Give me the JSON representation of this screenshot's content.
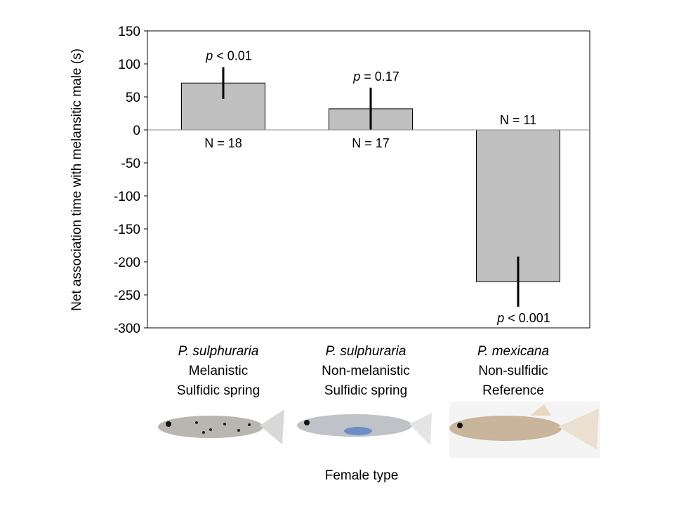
{
  "chart_data": {
    "type": "bar",
    "title": "",
    "xlabel": "Female type",
    "ylabel": "Net association time with melansitic male (s)",
    "ylim": [
      -300,
      150
    ],
    "yticks": [
      150,
      100,
      50,
      0,
      -50,
      -100,
      -150,
      -200,
      -250,
      -300
    ],
    "grid": false,
    "categories": [
      {
        "species": "P. sulphuraria",
        "line2": "Melanistic",
        "line3": "Sulfidic spring"
      },
      {
        "species": "P. sulphuraria",
        "line2": "Non-melanistic",
        "line3": "Sulfidic spring"
      },
      {
        "species": "P. mexicana",
        "line2": "Non-sulfidic",
        "line3": "Reference"
      }
    ],
    "values": [
      71,
      32,
      -230
    ],
    "error": [
      24,
      32,
      38
    ],
    "n_labels": [
      "N = 18",
      "N = 17",
      "N = 11"
    ],
    "p_labels": [
      {
        "p": "p",
        "rest": " < 0.01"
      },
      {
        "p": "p",
        "rest": " = 0.17"
      },
      {
        "p": "p",
        "rest": " < 0.001"
      }
    ],
    "bar_color": "#c0c0c0"
  }
}
